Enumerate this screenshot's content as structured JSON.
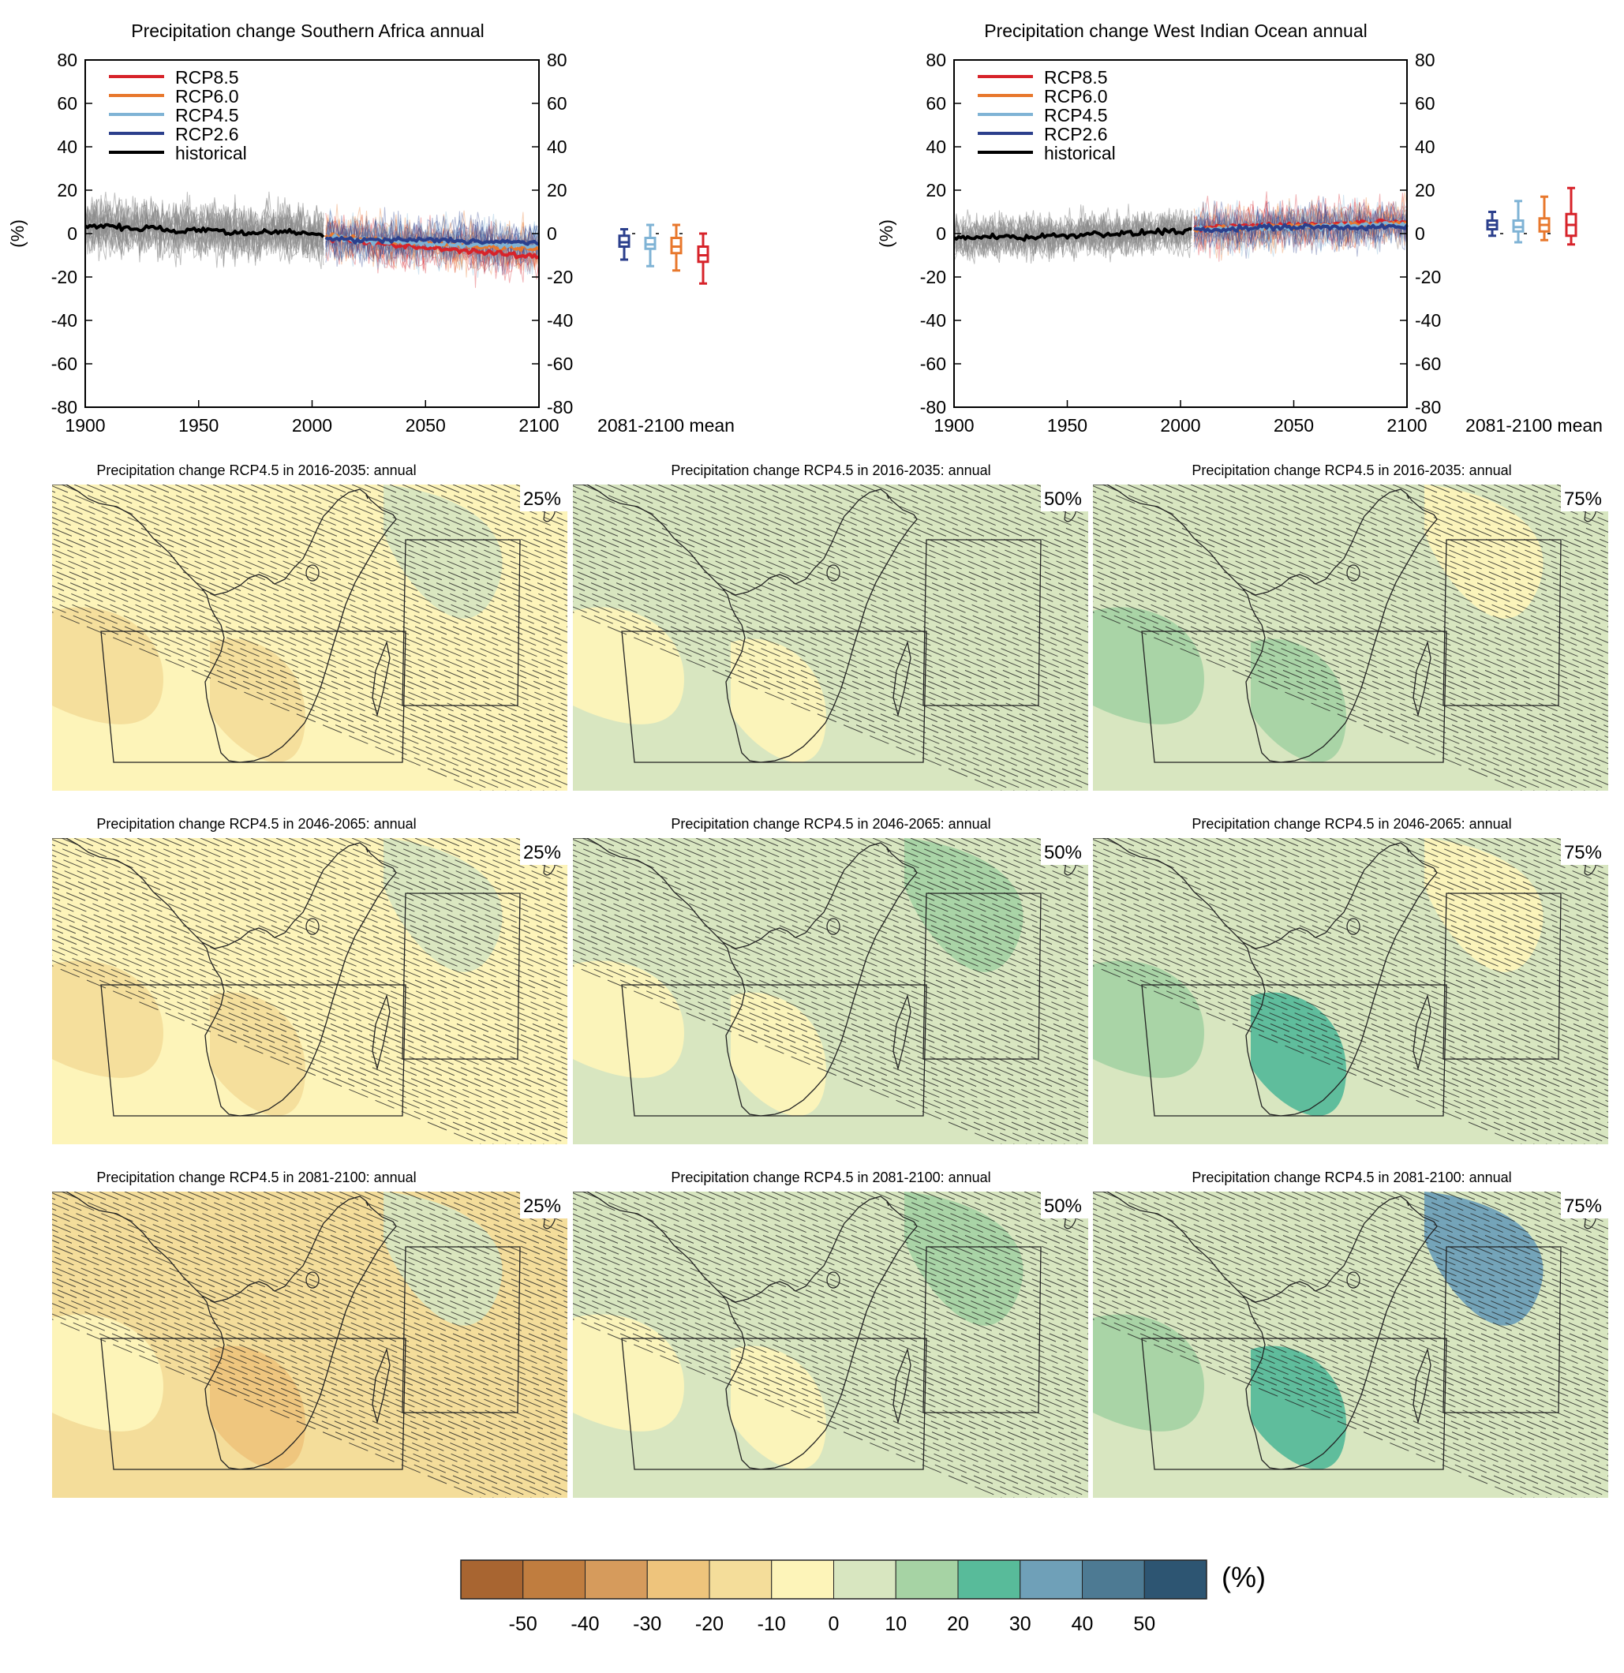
{
  "figure": {
    "colorbar": {
      "ticks": [
        "-50",
        "-40",
        "-30",
        "-20",
        "-10",
        "0",
        "10",
        "20",
        "30",
        "40",
        "50"
      ],
      "colors": [
        "#a86531",
        "#c07d3f",
        "#d69b5c",
        "#eec47c",
        "#f4dd9a",
        "#fdf4b9",
        "#d8e6c0",
        "#a6d3a4",
        "#58bb9a",
        "#6fa0b8",
        "#4d7a93",
        "#2d5572"
      ],
      "unit": "(%)"
    }
  },
  "chart_data": [
    {
      "type": "line",
      "title": "Precipitation change Southern Africa annual",
      "ylabel": "(%)",
      "xlim": [
        1900,
        2100
      ],
      "ylim": [
        -80,
        80
      ],
      "xticks": [
        "1900",
        "1950",
        "2000",
        "2050",
        "2100"
      ],
      "yticks": [
        "-80",
        "-60",
        "-40",
        "-20",
        "0",
        "20",
        "40",
        "60",
        "80"
      ],
      "summary_label": "2081-2100 mean",
      "legend": [
        {
          "name": "RCP8.5",
          "color": "#d7232a"
        },
        {
          "name": "RCP6.0",
          "color": "#e8782d"
        },
        {
          "name": "RCP4.5",
          "color": "#7fb3d5"
        },
        {
          "name": "RCP2.6",
          "color": "#2b3f8c"
        },
        {
          "name": "historical",
          "color": "#000000"
        }
      ],
      "series": [
        {
          "name": "historical",
          "x": [
            1900,
            1910,
            1920,
            1930,
            1940,
            1950,
            1960,
            1970,
            1980,
            1990,
            2005
          ],
          "y": [
            3,
            4,
            2,
            3,
            1,
            2,
            1,
            0,
            1,
            1,
            -1
          ]
        },
        {
          "name": "RCP2.6",
          "x": [
            2006,
            2020,
            2040,
            2060,
            2080,
            2100
          ],
          "y": [
            -2,
            -3,
            -3,
            -3,
            -4,
            -4
          ]
        },
        {
          "name": "RCP4.5",
          "x": [
            2006,
            2020,
            2040,
            2060,
            2080,
            2100
          ],
          "y": [
            -2,
            -3,
            -4,
            -5,
            -5,
            -6
          ]
        },
        {
          "name": "RCP6.0",
          "x": [
            2006,
            2020,
            2040,
            2060,
            2080,
            2100
          ],
          "y": [
            -1,
            -2,
            -4,
            -5,
            -6,
            -7
          ]
        },
        {
          "name": "RCP8.5",
          "x": [
            2006,
            2020,
            2040,
            2060,
            2080,
            2100
          ],
          "y": [
            -2,
            -3,
            -6,
            -7,
            -9,
            -11
          ]
        }
      ],
      "boxes_2081_2100": [
        {
          "name": "RCP2.6",
          "whisker_low": -12,
          "q1": -6,
          "median": -4,
          "q3": -1,
          "whisker_high": 2
        },
        {
          "name": "RCP4.5",
          "whisker_low": -15,
          "q1": -7,
          "median": -5,
          "q3": -2,
          "whisker_high": 4
        },
        {
          "name": "RCP6.0",
          "whisker_low": -17,
          "q1": -9,
          "median": -6,
          "q3": -2,
          "whisker_high": 4
        },
        {
          "name": "RCP8.5",
          "whisker_low": -23,
          "q1": -13,
          "median": -10,
          "q3": -6,
          "whisker_high": 0
        }
      ]
    },
    {
      "type": "line",
      "title": "Precipitation change West Indian Ocean annual",
      "ylabel": "(%)",
      "xlim": [
        1900,
        2100
      ],
      "ylim": [
        -80,
        80
      ],
      "xticks": [
        "1900",
        "1950",
        "2000",
        "2050",
        "2100"
      ],
      "yticks": [
        "-80",
        "-60",
        "-40",
        "-20",
        "0",
        "20",
        "40",
        "60",
        "80"
      ],
      "summary_label": "2081-2100 mean",
      "legend": [
        {
          "name": "RCP8.5",
          "color": "#d7232a"
        },
        {
          "name": "RCP6.0",
          "color": "#e8782d"
        },
        {
          "name": "RCP4.5",
          "color": "#7fb3d5"
        },
        {
          "name": "RCP2.6",
          "color": "#2b3f8c"
        },
        {
          "name": "historical",
          "color": "#000000"
        }
      ],
      "series": [
        {
          "name": "historical",
          "x": [
            1900,
            1910,
            1920,
            1930,
            1940,
            1950,
            1960,
            1970,
            1980,
            1990,
            2005
          ],
          "y": [
            -2,
            -2,
            -1,
            -2,
            -1,
            -1,
            0,
            0,
            0,
            1,
            1
          ]
        },
        {
          "name": "RCP2.6",
          "x": [
            2006,
            2020,
            2040,
            2060,
            2080,
            2100
          ],
          "y": [
            2,
            2,
            3,
            3,
            3,
            3
          ]
        },
        {
          "name": "RCP4.5",
          "x": [
            2006,
            2020,
            2040,
            2060,
            2080,
            2100
          ],
          "y": [
            2,
            2,
            3,
            3,
            4,
            4
          ]
        },
        {
          "name": "RCP6.0",
          "x": [
            2006,
            2020,
            2040,
            2060,
            2080,
            2100
          ],
          "y": [
            2,
            2,
            3,
            4,
            4,
            5
          ]
        },
        {
          "name": "RCP8.5",
          "x": [
            2006,
            2020,
            2040,
            2060,
            2080,
            2100
          ],
          "y": [
            2,
            3,
            4,
            4,
            5,
            6
          ]
        }
      ],
      "boxes_2081_2100": [
        {
          "name": "RCP2.6",
          "whisker_low": -1,
          "q1": 2,
          "median": 4,
          "q3": 6,
          "whisker_high": 10
        },
        {
          "name": "RCP4.5",
          "whisker_low": -4,
          "q1": 1,
          "median": 3,
          "q3": 6,
          "whisker_high": 15
        },
        {
          "name": "RCP6.0",
          "whisker_low": -3,
          "q1": 1,
          "median": 4,
          "q3": 7,
          "whisker_high": 17
        },
        {
          "name": "RCP8.5",
          "whisker_low": -5,
          "q1": -1,
          "median": 4,
          "q3": 9,
          "whisker_high": 21
        }
      ]
    },
    {
      "type": "heatmap",
      "title": "Precipitation change RCP4.5 in 2016-2035: annual",
      "panels": [
        {
          "percentile": "25%",
          "dominant_class": "0 to -10",
          "fill": "#fdf4b9",
          "patches": [
            "#f4dd9a",
            "#f4dd9a",
            "#d8e6c0"
          ]
        },
        {
          "percentile": "50%",
          "dominant_class": "0 to 10",
          "fill": "#d8e6c0",
          "patches": [
            "#fdf4b9",
            "#fdf4b9",
            "#d8e6c0"
          ]
        },
        {
          "percentile": "75%",
          "dominant_class": "0 to 10",
          "fill": "#d8e6c0",
          "patches": [
            "#a6d3a4",
            "#a6d3a4",
            "#fdf4b9"
          ]
        }
      ]
    },
    {
      "type": "heatmap",
      "title": "Precipitation change RCP4.5 in 2046-2065: annual",
      "panels": [
        {
          "percentile": "25%",
          "dominant_class": "0 to -10",
          "fill": "#fdf4b9",
          "patches": [
            "#f4dd9a",
            "#f4dd9a",
            "#d8e6c0"
          ]
        },
        {
          "percentile": "50%",
          "dominant_class": "0 to 10",
          "fill": "#d8e6c0",
          "patches": [
            "#fdf4b9",
            "#fdf4b9",
            "#a6d3a4"
          ]
        },
        {
          "percentile": "75%",
          "dominant_class": "0 to 10",
          "fill": "#d8e6c0",
          "patches": [
            "#a6d3a4",
            "#58bb9a",
            "#fdf4b9"
          ]
        }
      ]
    },
    {
      "type": "heatmap",
      "title": "Precipitation change RCP4.5 in 2081-2100: annual",
      "panels": [
        {
          "percentile": "25%",
          "dominant_class": "-10 to -20",
          "fill": "#f4dd9a",
          "patches": [
            "#fdf4b9",
            "#eec47c",
            "#d8e6c0"
          ]
        },
        {
          "percentile": "50%",
          "dominant_class": "0 to 10",
          "fill": "#d8e6c0",
          "patches": [
            "#fdf4b9",
            "#fdf4b9",
            "#a6d3a4"
          ]
        },
        {
          "percentile": "75%",
          "dominant_class": "0 to 10",
          "fill": "#d8e6c0",
          "patches": [
            "#a6d3a4",
            "#58bb9a",
            "#6fa0b8"
          ]
        }
      ]
    }
  ]
}
